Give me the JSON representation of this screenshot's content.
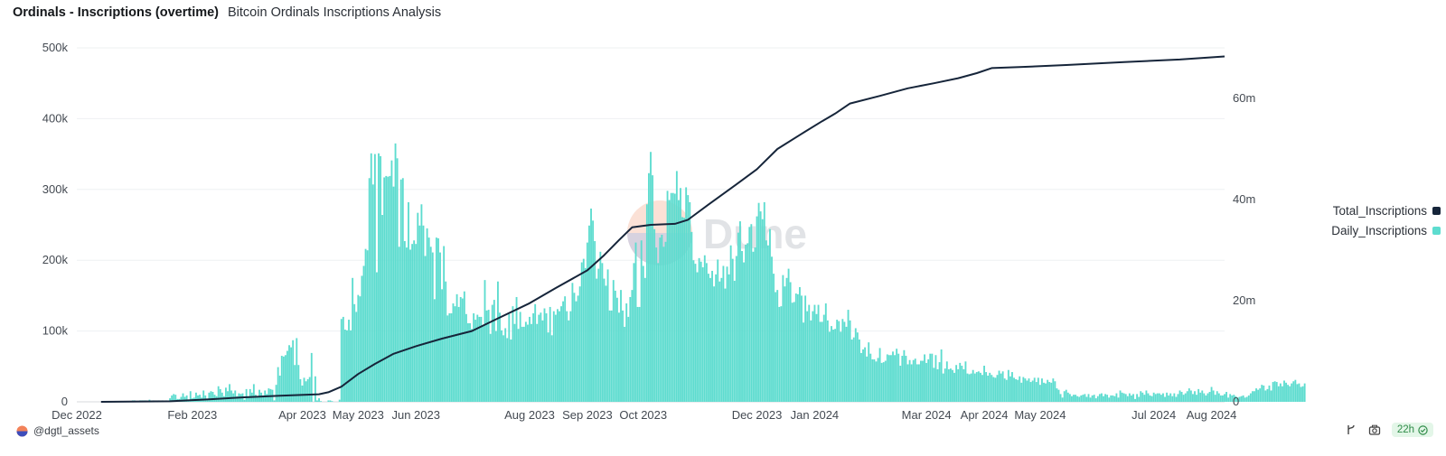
{
  "header": {
    "title": "Ordinals - Inscriptions (overtime)",
    "subtitle": "Bitcoin Ordinals Inscriptions Analysis"
  },
  "footer": {
    "author": "@dgtl_assets",
    "refresh_badge": "22h"
  },
  "watermark": {
    "text": "Dune"
  },
  "colors": {
    "daily": "#5ddccf",
    "total": "#16253a",
    "grid": "#eef0f2"
  },
  "chart_data": {
    "type": "bar+line",
    "x_range": [
      "2022-12-01",
      "2024-08-08"
    ],
    "x_ticks": [
      {
        "date": "2022-12-01",
        "label": "Dec 2022"
      },
      {
        "date": "2023-02-01",
        "label": "Feb 2023"
      },
      {
        "date": "2023-04-01",
        "label": "Apr 2023"
      },
      {
        "date": "2023-05-01",
        "label": "May 2023"
      },
      {
        "date": "2023-06-01",
        "label": "Jun 2023"
      },
      {
        "date": "2023-08-01",
        "label": "Aug 2023"
      },
      {
        "date": "2023-09-01",
        "label": "Sep 2023"
      },
      {
        "date": "2023-10-01",
        "label": "Oct 2023"
      },
      {
        "date": "2023-12-01",
        "label": "Dec 2023"
      },
      {
        "date": "2024-01-01",
        "label": "Jan 2024"
      },
      {
        "date": "2024-03-01",
        "label": "Mar 2024"
      },
      {
        "date": "2024-04-01",
        "label": "Apr 2024"
      },
      {
        "date": "2024-05-01",
        "label": "May 2024"
      },
      {
        "date": "2024-07-01",
        "label": "Jul 2024"
      },
      {
        "date": "2024-08-01",
        "label": "Aug 2024"
      }
    ],
    "y_left": {
      "min": 0,
      "max": 500000,
      "ticks": [
        0,
        100000,
        200000,
        300000,
        400000,
        500000
      ],
      "tick_labels": [
        "0",
        "100k",
        "200k",
        "300k",
        "400k",
        "500k"
      ]
    },
    "y_right": {
      "min": 0,
      "max": 70000000,
      "ticks": [
        0,
        20000000,
        40000000,
        60000000
      ],
      "tick_labels": [
        "0",
        "20m",
        "40m",
        "60m"
      ]
    },
    "legend_position": "right",
    "series": [
      {
        "name": "Total_Inscriptions",
        "type": "line",
        "axis": "right",
        "points": [
          [
            "2022-12-14",
            0
          ],
          [
            "2023-01-20",
            100000
          ],
          [
            "2023-02-10",
            500000
          ],
          [
            "2023-03-01",
            900000
          ],
          [
            "2023-03-20",
            1200000
          ],
          [
            "2023-04-10",
            1500000
          ],
          [
            "2023-04-15",
            1900000
          ],
          [
            "2023-04-22",
            3000000
          ],
          [
            "2023-05-01",
            5500000
          ],
          [
            "2023-05-10",
            7500000
          ],
          [
            "2023-05-20",
            9500000
          ],
          [
            "2023-06-01",
            11000000
          ],
          [
            "2023-06-15",
            12500000
          ],
          [
            "2023-07-01",
            14000000
          ],
          [
            "2023-07-15",
            16500000
          ],
          [
            "2023-08-01",
            19500000
          ],
          [
            "2023-08-15",
            22500000
          ],
          [
            "2023-09-01",
            26000000
          ],
          [
            "2023-09-10",
            29000000
          ],
          [
            "2023-09-18",
            32000000
          ],
          [
            "2023-09-25",
            34500000
          ],
          [
            "2023-10-05",
            35000000
          ],
          [
            "2023-10-18",
            35200000
          ],
          [
            "2023-10-25",
            36000000
          ],
          [
            "2023-11-05",
            39000000
          ],
          [
            "2023-11-20",
            43000000
          ],
          [
            "2023-12-01",
            46000000
          ],
          [
            "2023-12-12",
            50000000
          ],
          [
            "2023-12-25",
            53000000
          ],
          [
            "2024-01-05",
            55500000
          ],
          [
            "2024-01-12",
            57000000
          ],
          [
            "2024-01-20",
            59000000
          ],
          [
            "2024-02-05",
            60500000
          ],
          [
            "2024-02-20",
            62000000
          ],
          [
            "2024-03-05",
            63000000
          ],
          [
            "2024-03-18",
            64000000
          ],
          [
            "2024-03-28",
            65000000
          ],
          [
            "2024-04-05",
            66000000
          ],
          [
            "2024-04-20",
            66200000
          ],
          [
            "2024-05-15",
            66600000
          ],
          [
            "2024-06-15",
            67200000
          ],
          [
            "2024-07-15",
            67700000
          ],
          [
            "2024-08-08",
            68300000
          ]
        ]
      },
      {
        "name": "Daily_Inscriptions",
        "type": "bar",
        "axis": "left",
        "start_date": "2022-12-14",
        "values": [
          0,
          0,
          0,
          0,
          0,
          0,
          0,
          0,
          0,
          0,
          1000,
          1000,
          1000,
          1000,
          1000,
          1000,
          1000,
          2000,
          2000,
          1000,
          1000,
          2000,
          2000,
          2000,
          2000,
          1000,
          3000,
          1000,
          2000,
          1000,
          1000,
          2000,
          1000,
          2000,
          1000,
          2000,
          1000,
          5000,
          9000,
          11000,
          10000,
          4000,
          4000,
          7000,
          12000,
          7000,
          9000,
          3000,
          15000,
          5000,
          6000,
          13000,
          9000,
          10000,
          6000,
          16000,
          9000,
          4000,
          13000,
          15000,
          14000,
          10000,
          8000,
          22000,
          18000,
          13000,
          8000,
          20000,
          15000,
          25000,
          16000,
          12000,
          16000,
          8000,
          12000,
          11000,
          12000,
          3000,
          18000,
          6000,
          18000,
          13000,
          25000,
          10000,
          7000,
          17000,
          13000,
          9000,
          16000,
          11000,
          19000,
          18000,
          17000,
          2000,
          24000,
          49000,
          37000,
          65000,
          64000,
          66000,
          72000,
          80000,
          77000,
          87000,
          52000,
          90000,
          52000,
          32000,
          23000,
          34000,
          29000,
          32000,
          35000,
          69000,
          0,
          36000,
          2000,
          5000,
          1000,
          0,
          0,
          0,
          2000,
          2000,
          1000,
          0,
          0,
          0,
          3000,
          117000,
          120000,
          102000,
          101000,
          116000,
          101000,
          175000,
          138000,
          127000,
          151000,
          149000,
          178000,
          192000,
          216000,
          214000,
          316000,
          351000,
          307000,
          350000,
          183000,
          351000,
          347000,
          264000,
          317000,
          319000,
          318000,
          319000,
          341000,
          304000,
          365000,
          344000,
          219000,
          314000,
          316000,
          227000,
          218000,
          282000,
          215000,
          223000,
          228000,
          223000,
          267000,
          249000,
          279000,
          249000,
          206000,
          245000,
          232000,
          219000,
          211000,
          145000,
          232000,
          231000,
          211000,
          159000,
          220000,
          170000,
          122000,
          125000,
          125000,
          139000,
          135000,
          152000,
          134000,
          148000,
          146000,
          156000,
          124000,
          111000,
          111000,
          103000,
          125000,
          116000,
          123000,
          120000,
          120000,
          107000,
          172000,
          129000,
          130000,
          96000,
          137000,
          144000,
          100000,
          170000,
          126000,
          101000,
          94000,
          104000,
          90000,
          124000,
          88000,
          135000,
          110000,
          148000,
          103000,
          127000,
          106000,
          106000,
          113000,
          109000,
          120000,
          110000,
          125000,
          138000,
          110000,
          123000,
          126000,
          115000,
          132000,
          125000,
          98000,
          134000,
          94000,
          128000,
          123000,
          131000,
          128000,
          135000,
          142000,
          149000,
          128000,
          115000,
          128000,
          168000,
          154000,
          142000,
          150000,
          163000,
          197000,
          202000,
          189000,
          225000,
          249000,
          273000,
          256000,
          227000,
          174000,
          188000,
          212000,
          196000,
          174000,
          164000,
          187000,
          129000,
          129000,
          172000,
          157000,
          147000,
          126000,
          158000,
          129000,
          106000,
          139000,
          120000,
          148000,
          158000,
          196000,
          225000,
          134000,
          134000,
          228000,
          192000,
          175000,
          279000,
          323000,
          353000,
          320000,
          244000,
          218000,
          196000,
          232000,
          236000,
          219000,
          226000,
          298000,
          285000,
          295000,
          295000,
          294000,
          326000,
          285000,
          302000,
          261000,
          260000,
          303000,
          292000,
          282000,
          240000,
          200000,
          195000,
          183000,
          203000,
          198000,
          190000,
          207000,
          196000,
          181000,
          175000,
          185000,
          163000,
          180000,
          201000,
          170000,
          175000,
          192000,
          160000,
          191000,
          180000,
          221000,
          202000,
          171000,
          206000,
          239000,
          255000,
          213000,
          197000,
          222000,
          224000,
          247000,
          251000,
          212000,
          218000,
          262000,
          281000,
          269000,
          258000,
          282000,
          228000,
          221000,
          244000,
          205000,
          181000,
          155000,
          158000,
          134000,
          135000,
          179000,
          163000,
          175000,
          188000,
          169000,
          140000,
          141000,
          153000,
          152000,
          162000,
          150000,
          112000,
          150000,
          128000,
          137000,
          115000,
          128000,
          137000,
          124000,
          137000,
          113000,
          113000,
          123000,
          139000,
          115000,
          99000,
          107000,
          102000,
          103000,
          116000,
          114000,
          99000,
          117000,
          113000,
          106000,
          130000,
          115000,
          88000,
          91000,
          104000,
          98000,
          88000,
          69000,
          74000,
          77000,
          64000,
          84000,
          68000,
          60000,
          60000,
          57000,
          62000,
          76000,
          55000,
          56000,
          58000,
          67000,
          66000,
          66000,
          71000,
          66000,
          75000,
          68000,
          51000,
          65000,
          73000,
          65000,
          53000,
          59000,
          53000,
          59000,
          61000,
          53000,
          53000,
          58000,
          58000,
          67000,
          55000,
          60000,
          68000,
          68000,
          48000,
          66000,
          46000,
          56000,
          74000,
          40000,
          47000,
          57000,
          46000,
          47000,
          45000,
          41000,
          52000,
          46000,
          55000,
          51000,
          46000,
          57000,
          40000,
          39000,
          40000,
          45000,
          40000,
          42000,
          43000,
          41000,
          38000,
          51000,
          42000,
          37000,
          41000,
          38000,
          35000,
          34000,
          38000,
          44000,
          40000,
          43000,
          33000,
          31000,
          45000,
          36000,
          42000,
          34000,
          32000,
          31000,
          36000,
          27000,
          35000,
          33000,
          30000,
          33000,
          28000,
          30000,
          34000,
          28000,
          34000,
          24000,
          33000,
          27000,
          26000,
          31000,
          28000,
          27000,
          33000,
          29000,
          19000,
          17000,
          11000,
          6000,
          15000,
          17000,
          13000,
          11000,
          8000,
          10000,
          10000,
          8000,
          7000,
          9000,
          10000,
          11000,
          7000,
          11000,
          6000,
          9000,
          10000,
          5000,
          8000,
          11000,
          12000,
          8000,
          11000,
          10000,
          6000,
          9000,
          9000,
          8000,
          12000,
          6000,
          16000,
          13000,
          12000,
          11000,
          8000,
          12000,
          9000,
          11000,
          4000,
          11000,
          7000,
          15000,
          13000,
          10000,
          16000,
          12000,
          9000,
          8000,
          13000,
          11000,
          12000,
          12000,
          10000,
          12000,
          7000,
          13000,
          9000,
          12000,
          8000,
          12000,
          7000,
          11000,
          16000,
          14000,
          10000,
          12000,
          15000,
          19000,
          16000,
          11000,
          15000,
          10000,
          18000,
          13000,
          16000,
          12000,
          9000,
          12000,
          14000,
          21000,
          16000,
          10000,
          15000,
          12000,
          9000,
          9000,
          11000,
          14000,
          6000,
          11000,
          9000,
          10000,
          8000,
          6000,
          7000,
          8000,
          9000,
          6000,
          7000,
          9000,
          12000,
          15000,
          15000,
          19000,
          17000,
          19000,
          24000,
          23000,
          16000,
          18000,
          23000,
          16000,
          28000,
          29000,
          28000,
          22000,
          26000,
          22000,
          30000,
          27000,
          24000,
          22000,
          26000,
          29000,
          31000,
          25000,
          26000,
          21000,
          22000,
          26000
        ]
      }
    ]
  }
}
